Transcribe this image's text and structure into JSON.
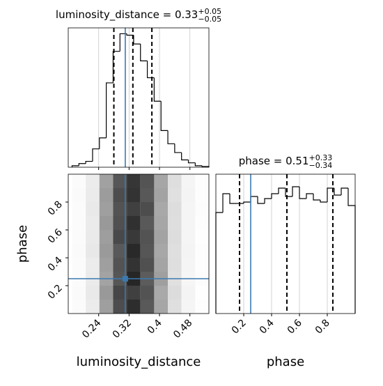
{
  "chart_data": [
    {
      "type": "histogram",
      "title": "luminosity_distance = 0.33",
      "title_plus": "+0.05",
      "title_minus": "−0.05",
      "bins": [
        0.17,
        0.188,
        0.206,
        0.224,
        0.242,
        0.26,
        0.278,
        0.296,
        0.314,
        0.332,
        0.35,
        0.368,
        0.386,
        0.404,
        0.422,
        0.44,
        0.458,
        0.476,
        0.494,
        0.512,
        0.53
      ],
      "values": [
        20,
        50,
        80,
        250,
        400,
        1150,
        1580,
        1820,
        1800,
        1680,
        1450,
        1220,
        900,
        500,
        320,
        200,
        100,
        60,
        20,
        10
      ],
      "color": "#000000",
      "xlim": [
        0.16,
        0.53
      ],
      "ylim": [
        0,
        1900
      ],
      "quantiles": [
        0.28,
        0.33,
        0.38
      ],
      "truth": 0.31,
      "truth_color": "#3b79b0"
    },
    {
      "type": "histogram2d",
      "xlabel": "luminosity_distance",
      "ylabel": "phase",
      "xlim": [
        0.16,
        0.53
      ],
      "ylim": [
        0,
        1
      ],
      "xticks": [
        0.24,
        0.32,
        0.4,
        0.48
      ],
      "yticks": [
        0.2,
        0.4,
        0.6,
        0.8
      ],
      "x_bins": [
        0.17,
        0.206,
        0.242,
        0.278,
        0.314,
        0.35,
        0.386,
        0.422,
        0.458,
        0.494,
        0.53
      ],
      "y_bins": [
        0,
        0.1,
        0.2,
        0.3,
        0.4,
        0.5,
        0.6,
        0.7,
        0.8,
        0.9,
        1
      ],
      "counts": [
        [
          6,
          30,
          150,
          280,
          330,
          260,
          140,
          50,
          15,
          3
        ],
        [
          8,
          35,
          160,
          290,
          300,
          270,
          135,
          55,
          18,
          2
        ],
        [
          7,
          32,
          145,
          265,
          340,
          255,
          150,
          48,
          14,
          4
        ],
        [
          6,
          30,
          150,
          270,
          320,
          275,
          142,
          52,
          16,
          3
        ],
        [
          8,
          36,
          158,
          260,
          335,
          265,
          138,
          50,
          17,
          3
        ],
        [
          7,
          33,
          152,
          285,
          310,
          270,
          145,
          54,
          15,
          2
        ],
        [
          6,
          31,
          160,
          275,
          325,
          260,
          140,
          51,
          16,
          3
        ],
        [
          7,
          34,
          150,
          270,
          300,
          280,
          136,
          53,
          15,
          4
        ],
        [
          8,
          32,
          155,
          280,
          320,
          262,
          144,
          49,
          17,
          3
        ],
        [
          6,
          30,
          148,
          265,
          315,
          268,
          139,
          52,
          16,
          3
        ]
      ],
      "truths": [
        0.31,
        0.25
      ],
      "truth_color": "#3b79b0"
    },
    {
      "type": "histogram",
      "title": "phase = 0.51",
      "title_plus": "+0.33",
      "title_minus": "−0.34",
      "xlabel": "phase",
      "bins": [
        0,
        0.05,
        0.1,
        0.15,
        0.2,
        0.25,
        0.3,
        0.35,
        0.4,
        0.45,
        0.5,
        0.55,
        0.6,
        0.65,
        0.7,
        0.75,
        0.8,
        0.85,
        0.9,
        0.95,
        1
      ],
      "values": [
        145,
        172,
        158,
        158,
        160,
        168,
        158,
        165,
        172,
        180,
        168,
        182,
        165,
        172,
        163,
        160,
        180,
        170,
        180,
        155
      ],
      "color": "#000000",
      "xlim": [
        0,
        1
      ],
      "ylim": [
        0,
        200
      ],
      "xticks": [
        0.2,
        0.4,
        0.6,
        0.8
      ],
      "quantiles": [
        0.17,
        0.51,
        0.84
      ],
      "truth": 0.25,
      "truth_color": "#3b79b0"
    }
  ]
}
